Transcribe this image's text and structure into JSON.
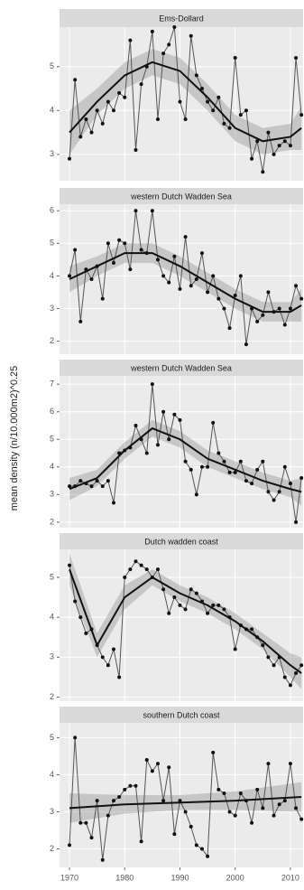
{
  "ylabel": "mean density (n/10.000m2)^0.25",
  "chart_data": [
    {
      "type": "line",
      "title": "Ems-Dollard",
      "x": [
        1970,
        1971,
        1972,
        1973,
        1974,
        1975,
        1976,
        1977,
        1978,
        1979,
        1980,
        1981,
        1982,
        1983,
        1984,
        1985,
        1986,
        1987,
        1988,
        1989,
        1990,
        1991,
        1992,
        1993,
        1994,
        1995,
        1996,
        1997,
        1998,
        1999,
        2000,
        2001,
        2002,
        2003,
        2004,
        2005,
        2006,
        2007,
        2008,
        2009,
        2010,
        2011,
        2012
      ],
      "values": [
        2.9,
        4.7,
        3.4,
        3.8,
        3.5,
        4.0,
        3.7,
        4.2,
        4.0,
        4.4,
        4.3,
        5.6,
        3.1,
        4.6,
        5.0,
        5.8,
        3.8,
        5.3,
        5.5,
        5.9,
        4.2,
        3.8,
        5.7,
        4.8,
        4.5,
        4.2,
        4.0,
        4.3,
        3.7,
        3.6,
        5.2,
        3.9,
        4.0,
        2.9,
        3.3,
        2.6,
        3.5,
        3.0,
        3.2,
        3.3,
        3.2,
        5.2,
        3.9
      ],
      "smooth": {
        "x": [
          1970,
          1975,
          1980,
          1985,
          1990,
          1995,
          2000,
          2005,
          2010,
          2012
        ],
        "values": [
          3.5,
          4.2,
          4.8,
          5.1,
          4.9,
          4.3,
          3.6,
          3.3,
          3.4,
          3.6
        ],
        "lower": [
          3.0,
          3.9,
          4.5,
          4.8,
          4.6,
          4.0,
          3.3,
          3.0,
          3.1,
          3.1
        ],
        "upper": [
          4.0,
          4.5,
          5.1,
          5.4,
          5.2,
          4.6,
          3.9,
          3.6,
          3.7,
          4.1
        ]
      },
      "color": "#555555",
      "smooth_color": "#111111",
      "band_color": "#9a9a9a",
      "xlim": [
        1968.2,
        2012.3
      ],
      "xticks": [
        1970,
        1980,
        1990,
        2000,
        2010
      ],
      "ylim": [
        2.4,
        5.9
      ],
      "yticks": [
        3,
        4,
        5
      ],
      "grid": true
    },
    {
      "type": "line",
      "title": "western Dutch Wadden Sea",
      "x": [
        1970,
        1971,
        1972,
        1973,
        1974,
        1975,
        1976,
        1977,
        1978,
        1979,
        1980,
        1981,
        1982,
        1983,
        1984,
        1985,
        1986,
        1987,
        1988,
        1989,
        1990,
        1991,
        1992,
        1993,
        1994,
        1995,
        1996,
        1997,
        1998,
        1999,
        2000,
        2001,
        2002,
        2003,
        2004,
        2005,
        2006,
        2007,
        2008,
        2009,
        2010,
        2011,
        2012
      ],
      "values": [
        4.0,
        4.8,
        2.6,
        4.2,
        3.9,
        4.3,
        3.3,
        5.0,
        4.4,
        5.1,
        5.0,
        4.2,
        6.0,
        4.8,
        4.7,
        6.0,
        4.5,
        4.0,
        3.8,
        4.6,
        3.6,
        5.2,
        3.7,
        3.9,
        4.7,
        3.5,
        4.0,
        3.3,
        3.0,
        2.4,
        3.4,
        4.0,
        1.9,
        3.0,
        2.6,
        2.8,
        3.5,
        2.9,
        3.0,
        2.5,
        3.0,
        3.7,
        3.3
      ],
      "smooth": {
        "x": [
          1970,
          1975,
          1980,
          1985,
          1990,
          1995,
          2000,
          2005,
          2010,
          2012
        ],
        "values": [
          3.9,
          4.3,
          4.7,
          4.7,
          4.3,
          3.8,
          3.3,
          2.9,
          2.9,
          3.1
        ],
        "lower": [
          3.5,
          4.0,
          4.4,
          4.4,
          4.0,
          3.5,
          3.0,
          2.6,
          2.6,
          2.6
        ],
        "upper": [
          4.3,
          4.6,
          5.0,
          5.0,
          4.6,
          4.1,
          3.6,
          3.2,
          3.2,
          3.6
        ]
      },
      "color": "#555555",
      "smooth_color": "#111111",
      "band_color": "#9a9a9a",
      "xlim": [
        1968.2,
        2012.3
      ],
      "xticks": [
        1970,
        1980,
        1990,
        2000,
        2010
      ],
      "ylim": [
        1.6,
        6.2
      ],
      "yticks": [
        2,
        3,
        4,
        5,
        6
      ],
      "grid": true
    },
    {
      "type": "line",
      "title": "western Dutch Wadden Sea",
      "x": [
        1970,
        1971,
        1972,
        1973,
        1974,
        1975,
        1976,
        1977,
        1978,
        1979,
        1980,
        1981,
        1982,
        1983,
        1984,
        1985,
        1986,
        1987,
        1988,
        1989,
        1990,
        1991,
        1992,
        1993,
        1994,
        1995,
        1996,
        1997,
        1998,
        1999,
        2000,
        2001,
        2002,
        2003,
        2004,
        2005,
        2006,
        2007,
        2008,
        2009,
        2010,
        2011,
        2012
      ],
      "values": [
        3.3,
        3.3,
        3.5,
        3.4,
        3.3,
        3.5,
        3.3,
        3.5,
        2.7,
        4.5,
        4.6,
        4.7,
        5.5,
        5.0,
        4.5,
        7.0,
        4.8,
        6.0,
        5.0,
        5.9,
        5.7,
        4.2,
        3.9,
        3.0,
        4.0,
        4.0,
        5.6,
        4.5,
        4.2,
        3.8,
        3.8,
        4.2,
        3.5,
        3.4,
        3.9,
        4.2,
        3.1,
        2.8,
        3.1,
        4.0,
        3.4,
        2.0,
        3.6
      ],
      "smooth": {
        "x": [
          1970,
          1975,
          1980,
          1985,
          1990,
          1995,
          2000,
          2005,
          2010,
          2012
        ],
        "values": [
          3.2,
          3.6,
          4.6,
          5.4,
          5.0,
          4.3,
          3.9,
          3.5,
          3.2,
          3.1
        ],
        "lower": [
          2.8,
          3.3,
          4.3,
          5.1,
          4.7,
          4.0,
          3.6,
          3.2,
          2.9,
          2.6
        ],
        "upper": [
          3.6,
          3.9,
          4.9,
          5.7,
          5.3,
          4.6,
          4.2,
          3.8,
          3.5,
          3.6
        ]
      },
      "color": "#555555",
      "smooth_color": "#111111",
      "band_color": "#9a9a9a",
      "xlim": [
        1968.2,
        2012.3
      ],
      "xticks": [
        1970,
        1980,
        1990,
        2000,
        2010
      ],
      "ylim": [
        1.8,
        7.3
      ],
      "yticks": [
        2,
        3,
        4,
        5,
        6,
        7
      ],
      "grid": true
    },
    {
      "type": "line",
      "title": "Dutch wadden coast",
      "x": [
        1970,
        1971,
        1972,
        1973,
        1974,
        1975,
        1976,
        1977,
        1978,
        1979,
        1980,
        1981,
        1982,
        1983,
        1984,
        1985,
        1986,
        1987,
        1988,
        1989,
        1990,
        1991,
        1992,
        1993,
        1994,
        1995,
        1996,
        1997,
        1998,
        1999,
        2000,
        2001,
        2002,
        2003,
        2004,
        2005,
        2006,
        2007,
        2008,
        2009,
        2010,
        2011,
        2012
      ],
      "values": [
        5.3,
        4.4,
        4.0,
        3.6,
        3.7,
        3.3,
        3.0,
        2.8,
        3.2,
        2.5,
        5.0,
        5.2,
        5.4,
        5.3,
        5.2,
        5.0,
        5.2,
        4.7,
        4.1,
        4.5,
        4.3,
        4.2,
        4.7,
        4.6,
        4.4,
        4.1,
        4.3,
        4.3,
        4.2,
        4.0,
        3.2,
        3.8,
        3.7,
        3.7,
        3.5,
        3.3,
        3.0,
        2.8,
        3.0,
        2.5,
        2.3,
        2.6,
        2.8
      ],
      "smooth": {
        "x": [
          1970,
          1975,
          1980,
          1985,
          1990,
          1995,
          2000,
          2005,
          2010,
          2012
        ],
        "values": [
          5.2,
          3.3,
          4.5,
          5.0,
          4.6,
          4.3,
          3.9,
          3.4,
          2.8,
          2.6
        ],
        "lower": [
          4.8,
          3.0,
          4.2,
          4.8,
          4.4,
          4.1,
          3.7,
          3.2,
          2.5,
          2.2
        ],
        "upper": [
          5.6,
          3.6,
          4.8,
          5.2,
          4.8,
          4.5,
          4.1,
          3.6,
          3.1,
          3.0
        ]
      },
      "color": "#555555",
      "smooth_color": "#111111",
      "band_color": "#9a9a9a",
      "xlim": [
        1968.2,
        2012.3
      ],
      "xticks": [
        1970,
        1980,
        1990,
        2000,
        2010
      ],
      "ylim": [
        1.9,
        5.7
      ],
      "yticks": [
        2,
        3,
        4,
        5
      ],
      "grid": true
    },
    {
      "type": "line",
      "title": "southern Dutch coast",
      "x": [
        1970,
        1971,
        1972,
        1973,
        1974,
        1975,
        1976,
        1977,
        1978,
        1979,
        1980,
        1981,
        1982,
        1983,
        1984,
        1985,
        1986,
        1987,
        1988,
        1989,
        1990,
        1991,
        1992,
        1993,
        1994,
        1995,
        1996,
        1997,
        1998,
        1999,
        2000,
        2001,
        2002,
        2003,
        2004,
        2005,
        2006,
        2007,
        2008,
        2009,
        2010,
        2011,
        2012
      ],
      "values": [
        2.1,
        5.0,
        2.7,
        2.7,
        2.3,
        3.3,
        1.7,
        2.9,
        3.3,
        3.4,
        3.6,
        3.7,
        3.7,
        2.2,
        4.4,
        4.1,
        4.3,
        3.3,
        4.2,
        2.4,
        3.3,
        3.0,
        2.6,
        2.1,
        2.0,
        1.8,
        4.6,
        3.6,
        3.5,
        3.0,
        2.9,
        3.5,
        3.3,
        2.7,
        3.6,
        3.1,
        4.3,
        2.9,
        3.2,
        3.3,
        4.3,
        3.1,
        2.8
      ],
      "smooth": {
        "x": [
          1970,
          1980,
          1990,
          2000,
          2012
        ],
        "values": [
          3.1,
          3.2,
          3.25,
          3.3,
          3.4
        ],
        "lower": [
          2.7,
          2.95,
          3.05,
          3.05,
          3.0
        ],
        "upper": [
          3.5,
          3.45,
          3.45,
          3.55,
          3.8
        ]
      },
      "color": "#555555",
      "smooth_color": "#111111",
      "band_color": "#9a9a9a",
      "xlim": [
        1968.2,
        2012.3
      ],
      "xticks": [
        1970,
        1980,
        1990,
        2000,
        2010
      ],
      "ylim": [
        1.5,
        5.4
      ],
      "yticks": [
        2,
        3,
        4,
        5
      ],
      "grid": true
    }
  ]
}
